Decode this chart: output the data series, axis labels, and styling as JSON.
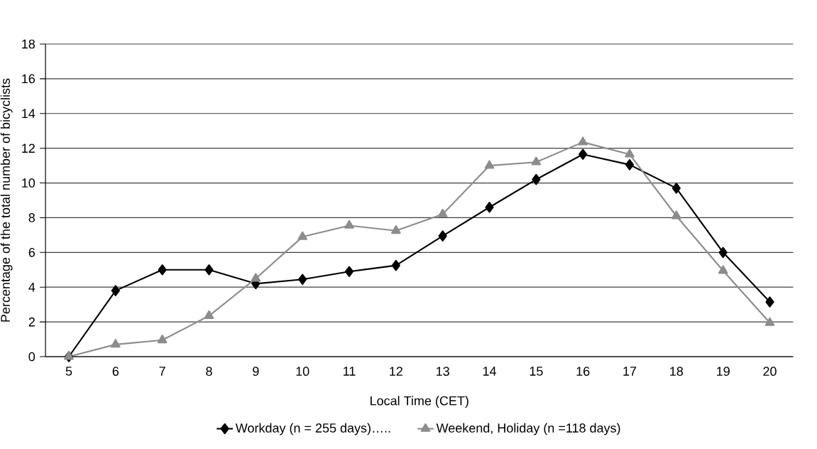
{
  "chart_data": {
    "type": "line",
    "xlabel": "Local Time (CET)",
    "ylabel": "Percentage of the total number of bicyclists",
    "categories": [
      "5",
      "6",
      "7",
      "8",
      "9",
      "10",
      "11",
      "12",
      "13",
      "14",
      "15",
      "16",
      "17",
      "18",
      "19",
      "20"
    ],
    "series": [
      {
        "name": "Workday (n = 255 days)…..",
        "color": "#000000",
        "marker": "diamond",
        "values": [
          0,
          3.8,
          5.0,
          5.0,
          4.2,
          4.45,
          4.9,
          5.25,
          6.95,
          8.6,
          10.2,
          11.65,
          11.05,
          9.7,
          6.0,
          3.15
        ]
      },
      {
        "name": "Weekend, Holiday (n =118 days)",
        "color": "#8c8c8c",
        "marker": "triangle",
        "values": [
          0,
          0.7,
          0.95,
          2.35,
          4.5,
          6.9,
          7.55,
          7.25,
          8.2,
          11.0,
          11.2,
          12.35,
          11.65,
          8.1,
          4.95,
          1.95
        ]
      }
    ],
    "ylim": [
      0,
      18
    ],
    "yticks": [
      0,
      2,
      4,
      6,
      8,
      10,
      12,
      14,
      16,
      18
    ],
    "grid": "y",
    "legend": "bottom",
    "line_style": "solid"
  }
}
